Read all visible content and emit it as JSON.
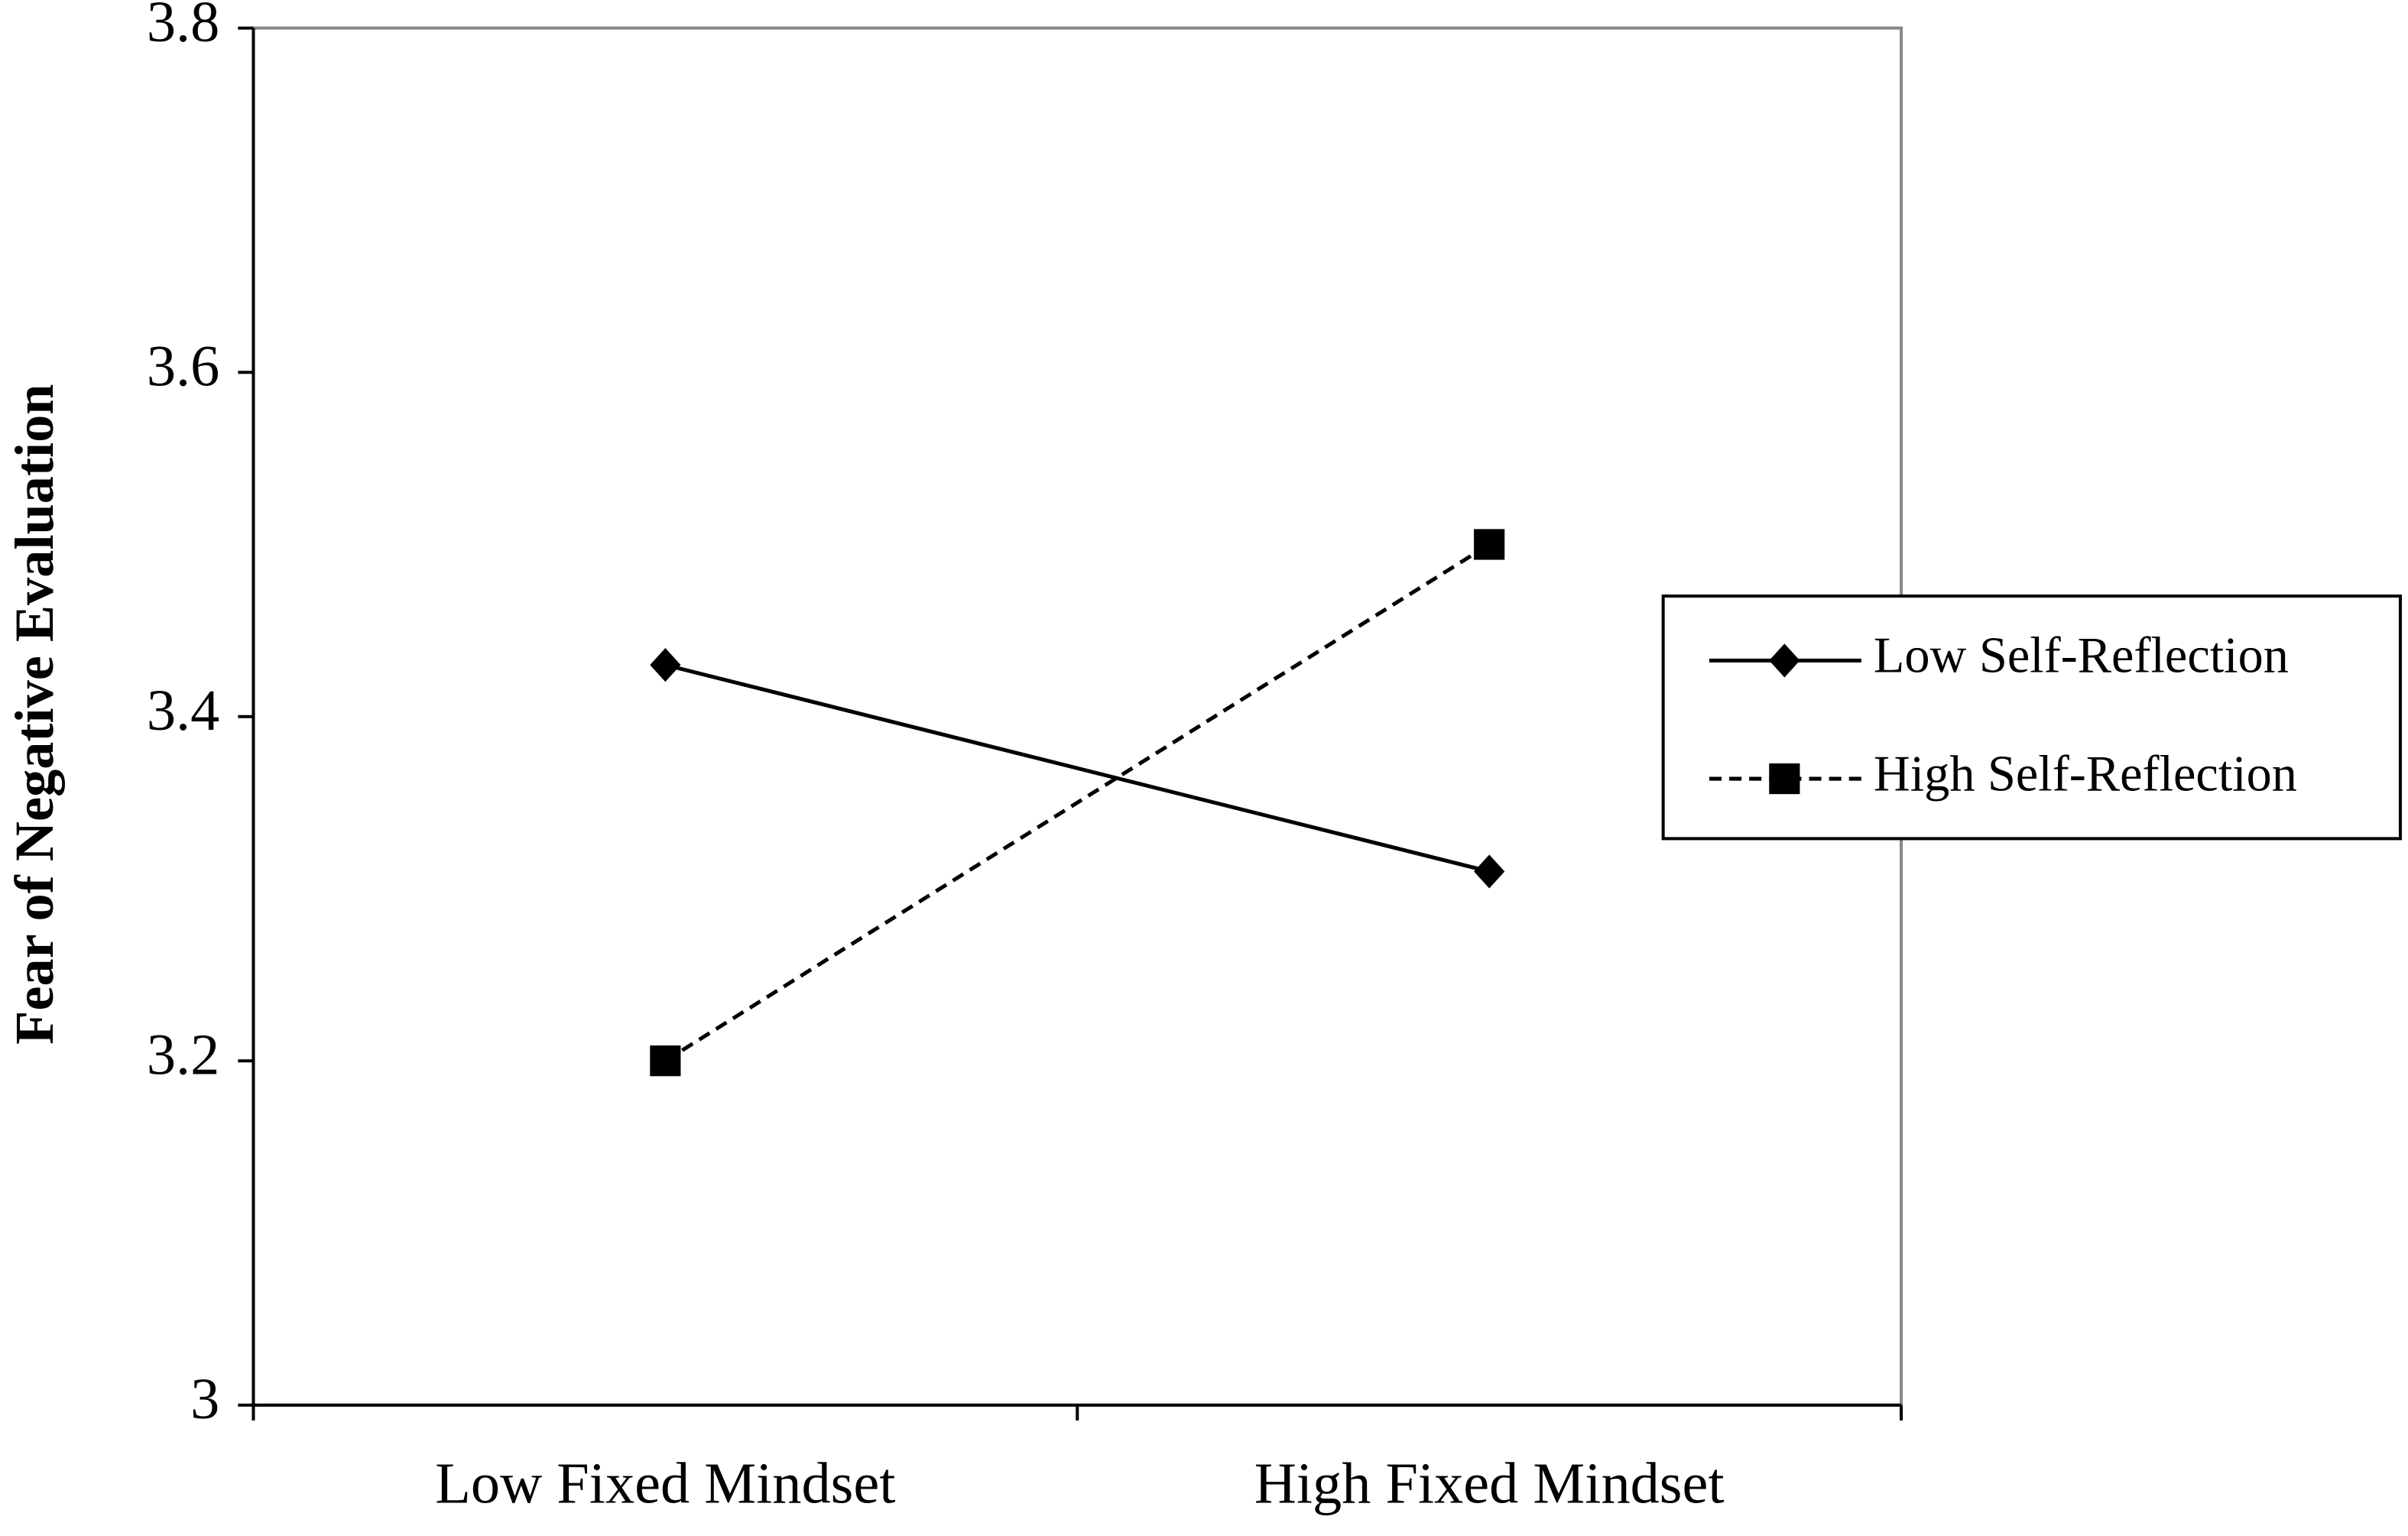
{
  "chart_data": {
    "type": "line",
    "y_label": "Fear of Negative Evaluation",
    "categories": [
      "Low Fixed Mindset",
      "High Fixed Mindset"
    ],
    "series": [
      {
        "name": "Low Self-Reflection",
        "color": "#000000",
        "marker": "diamond",
        "dash": false,
        "values": [
          3.43,
          3.31
        ]
      },
      {
        "name": "High Self-Reflection",
        "color": "#000000",
        "marker": "square",
        "dash": true,
        "values": [
          3.2,
          3.5
        ]
      }
    ],
    "ylim": [
      3,
      3.8
    ],
    "yticks": [
      3,
      3.2,
      3.4,
      3.6,
      3.8
    ],
    "legend": "right",
    "grid": false
  }
}
